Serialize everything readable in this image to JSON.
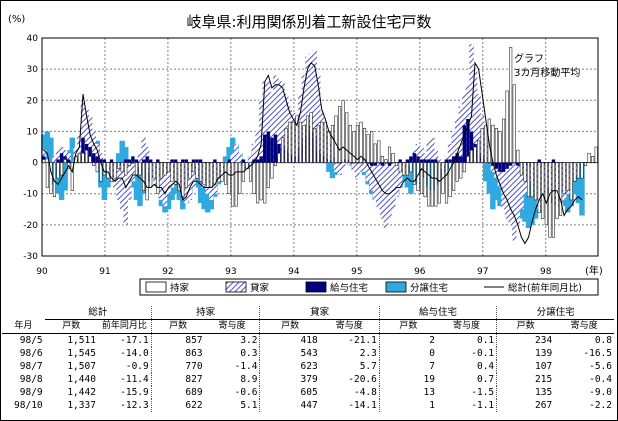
{
  "chart_data": {
    "type": "bar",
    "title": "岐阜県:利用関係別着工新設住宅戸数",
    "ylabel": "(%)",
    "xunit": "(年)",
    "ylim": [
      -30,
      40
    ],
    "yticks": [
      -30,
      -20,
      -10,
      0,
      10,
      20,
      30,
      40
    ],
    "xlim": [
      1990,
      1998.83
    ],
    "xticks": [
      "90",
      "91",
      "92",
      "93",
      "94",
      "95",
      "96",
      "97",
      "98"
    ],
    "annotation": [
      "グラフ",
      "3カ月移動平均"
    ],
    "legend_position": "bottom",
    "series": [
      {
        "name": "持家",
        "key": "mochiie",
        "pattern": "white",
        "values": [
          1,
          -8,
          -10,
          -11,
          -5,
          -4,
          1,
          -2,
          -9,
          2,
          3,
          3,
          4,
          2,
          -1,
          -3,
          -6,
          -4,
          -5,
          -6,
          -5,
          -2,
          -3,
          -4,
          -1,
          0,
          -4,
          -4,
          -9,
          -12,
          -8,
          -5,
          -10,
          -5,
          -4,
          -3,
          -6,
          -7,
          -9,
          -11,
          -8,
          -5,
          -3,
          -5,
          -6,
          -7,
          -8,
          -8,
          -7,
          -5,
          -6,
          -7,
          -10,
          -14,
          -14,
          -10,
          -6,
          -2,
          -6,
          -10,
          -13,
          -12,
          -13,
          -8,
          -5,
          -1,
          3,
          8,
          11,
          13,
          13,
          15,
          13,
          12,
          15,
          16,
          11,
          12,
          13,
          13,
          10,
          12,
          15,
          18,
          20,
          16,
          12,
          10,
          12,
          13,
          11,
          9,
          10,
          6,
          7,
          2,
          1,
          5,
          3,
          -1,
          -3,
          -4,
          -4,
          -3,
          -7,
          -9,
          -10,
          -11,
          -14,
          -14,
          -14,
          -13,
          -10,
          -13,
          -11,
          -9,
          -6,
          -5,
          -3,
          2,
          4,
          5,
          7,
          11,
          12,
          14,
          12,
          11,
          10,
          14,
          23,
          37,
          25,
          4,
          -4,
          -6,
          -11,
          -11,
          -12,
          -16,
          -18,
          -20,
          -24,
          -24,
          -18,
          -17,
          -10,
          -9,
          -12,
          -6,
          -5,
          -5,
          -1,
          3,
          2,
          5
        ]
      },
      {
        "name": "貸家",
        "key": "kashiya",
        "pattern": "hatch",
        "values": [
          4,
          1,
          0,
          2,
          4,
          5,
          4,
          3,
          0,
          5,
          9,
          20,
          17,
          15,
          10,
          6,
          3,
          0,
          -2,
          -5,
          -8,
          -12,
          -15,
          -20,
          -12,
          -6,
          -2,
          3,
          8,
          5,
          -3,
          -6,
          -8,
          -12,
          -14,
          -10,
          -8,
          -5,
          -6,
          -10,
          -13,
          -12,
          -8,
          -3,
          -5,
          -8,
          -10,
          -12,
          -10,
          -6,
          -3,
          -1,
          1,
          3,
          6,
          3,
          1,
          -1,
          2,
          6,
          10,
          20,
          26,
          26,
          22,
          28,
          27,
          26,
          22,
          18,
          16,
          14,
          22,
          28,
          34,
          35,
          36,
          28,
          16,
          12,
          6,
          2,
          -3,
          -4,
          -2,
          1,
          -1,
          -3,
          -5,
          -3,
          -3,
          -6,
          -9,
          -12,
          -15,
          -18,
          -21,
          -18,
          -15,
          -11,
          -8,
          -4,
          -1,
          1,
          4,
          6,
          5,
          3,
          7,
          8,
          4,
          1,
          -2,
          2,
          6,
          10,
          14,
          18,
          22,
          25,
          38,
          30,
          22,
          15,
          6,
          0,
          -3,
          -5,
          -8,
          -15,
          -18,
          -20,
          -25,
          -20,
          -15,
          -10,
          -5,
          -6,
          -10,
          -15,
          -12,
          -8,
          -6,
          -11,
          -14,
          -14,
          -12,
          -10,
          -6,
          -4
        ]
      },
      {
        "name": "給与住宅",
        "key": "kyuyo",
        "pattern": "navy",
        "values": [
          2,
          0,
          -1,
          0,
          1,
          3,
          2,
          1,
          0,
          1,
          2,
          8,
          6,
          5,
          3,
          2,
          1,
          1,
          0,
          1,
          0,
          -1,
          0,
          1,
          1,
          2,
          1,
          0,
          1,
          2,
          1,
          0,
          1,
          0,
          0,
          0,
          1,
          1,
          0,
          1,
          1,
          0,
          1,
          1,
          1,
          0,
          0,
          0,
          1,
          0,
          0,
          0,
          1,
          0,
          0,
          0,
          1,
          0,
          0,
          1,
          1,
          2,
          9,
          10,
          8,
          9,
          6,
          5,
          4,
          3,
          2,
          2,
          5,
          8,
          12,
          10,
          8,
          4,
          3,
          2,
          1,
          1,
          0,
          0,
          1,
          1,
          0,
          0,
          0,
          0,
          1,
          0,
          -1,
          -1,
          0,
          -1,
          0,
          -1,
          0,
          0,
          1,
          0,
          1,
          2,
          3,
          2,
          1,
          1,
          1,
          1,
          1,
          0,
          0,
          1,
          1,
          2,
          3,
          2,
          12,
          14,
          10,
          6,
          3,
          2,
          1,
          0,
          -1,
          -2,
          -3,
          -3,
          -2,
          -1,
          0,
          -1,
          0,
          0,
          -1,
          0,
          0,
          1,
          -1,
          0,
          0,
          1,
          0,
          0
        ]
      },
      {
        "name": "分譲住宅",
        "key": "bunjo",
        "pattern": "cyan",
        "values": [
          9,
          10,
          8,
          -7,
          -10,
          -12,
          -9,
          4,
          8,
          5,
          3,
          2,
          1,
          3,
          5,
          7,
          -8,
          -12,
          -8,
          -4,
          -2,
          3,
          7,
          5,
          -2,
          -8,
          -12,
          -14,
          -10,
          -6,
          -3,
          -5,
          -8,
          -14,
          -16,
          -15,
          -12,
          -10,
          -12,
          -15,
          -13,
          -10,
          -6,
          -8,
          -13,
          -15,
          -16,
          -15,
          -11,
          -7,
          -2,
          2,
          5,
          8,
          6,
          3,
          -1,
          -2,
          2,
          4,
          7,
          9,
          8,
          6,
          4,
          7,
          10,
          13,
          12,
          8,
          5,
          2,
          3,
          8,
          10,
          9,
          6,
          3,
          2,
          0,
          -3,
          -5,
          -4,
          -2,
          0,
          1,
          -1,
          -2,
          -3,
          -1,
          -4,
          -7,
          -10,
          -12,
          -13,
          -14,
          -15,
          -14,
          -12,
          -10,
          -8,
          -6,
          -8,
          -10,
          -7,
          -4,
          -2,
          -5,
          -8,
          -9,
          -7,
          -5,
          -3,
          -2,
          1,
          3,
          2,
          6,
          9,
          12,
          14,
          10,
          6,
          1,
          -6,
          -10,
          -15,
          -12,
          -14,
          -13,
          -10,
          -8,
          -14,
          -16,
          -18,
          -19,
          -21,
          -20,
          -18,
          -16,
          -10,
          -8,
          -10,
          -13,
          -12,
          -9,
          -14,
          -16,
          -14,
          -10,
          -13,
          -17
        ]
      },
      {
        "name": "総計(前年同月比)",
        "key": "total",
        "pattern": "line",
        "values": [
          4,
          3,
          -3,
          -6,
          -7,
          -5,
          -3,
          -1,
          -3,
          3,
          5,
          22,
          15,
          9,
          6,
          4,
          0,
          -3,
          -3,
          -5,
          -6,
          -5,
          -5,
          -8,
          -6,
          -4,
          -4,
          -5,
          -6,
          -8,
          -8,
          -7,
          -8,
          -8,
          -10,
          -8,
          -7,
          -6,
          -7,
          -12,
          -11,
          -8,
          -6,
          -6,
          -7,
          -8,
          -8,
          -8,
          -7,
          -5,
          -4,
          -3,
          -4,
          -4,
          -3,
          -3,
          -3,
          -2,
          -1,
          0,
          2,
          6,
          26,
          28,
          24,
          25,
          25,
          24,
          20,
          16,
          14,
          12,
          16,
          24,
          30,
          32,
          31,
          25,
          17,
          14,
          10,
          8,
          6,
          4,
          5,
          4,
          3,
          2,
          1,
          2,
          1,
          -1,
          -3,
          -5,
          -7,
          -9,
          -10,
          -10,
          -9,
          -8,
          -8,
          -6,
          -5,
          -6,
          -6,
          -4,
          -2,
          -3,
          -4,
          -5,
          -5,
          -6,
          -5,
          -4,
          -2,
          0,
          3,
          6,
          9,
          12,
          15,
          32,
          30,
          22,
          14,
          6,
          0,
          -4,
          -7,
          -10,
          -12,
          -15,
          -17,
          -20,
          -24,
          -26,
          -24,
          -19,
          -15,
          -12,
          -10,
          -13,
          -10,
          -9,
          -9,
          -12,
          -17,
          -15,
          -14,
          -12,
          -11,
          -12
        ]
      }
    ]
  },
  "table": {
    "groups": [
      "総計",
      "持家",
      "貸家",
      "給与住宅",
      "分譲住宅"
    ],
    "row_label": "年月",
    "subheaders": [
      "戸数",
      "前年同月比",
      "戸数",
      "寄与度",
      "戸数",
      "寄与度",
      "戸数",
      "寄与度",
      "戸数",
      "寄与度"
    ],
    "rows": [
      {
        "month": "98/5",
        "cells": [
          "1,511",
          "-17.1",
          "857",
          "3.2",
          "418",
          "-21.1",
          "2",
          "0.1",
          "234",
          "0.8"
        ]
      },
      {
        "month": "98/6",
        "cells": [
          "1,545",
          "-14.0",
          "863",
          "0.3",
          "543",
          "2.3",
          "0",
          "-0.1",
          "139",
          "-16.5"
        ]
      },
      {
        "month": "98/7",
        "cells": [
          "1,507",
          "-0.9",
          "770",
          "-1.4",
          "623",
          "5.7",
          "7",
          "0.4",
          "107",
          "-5.6"
        ]
      },
      {
        "month": "98/8",
        "cells": [
          "1,440",
          "-11.4",
          "827",
          "8.9",
          "379",
          "-20.6",
          "19",
          "0.7",
          "215",
          "-0.4"
        ]
      },
      {
        "month": "98/9",
        "cells": [
          "1,442",
          "-15.9",
          "689",
          "-0.6",
          "605",
          "-4.8",
          "13",
          "-1.5",
          "135",
          "-9.0"
        ]
      },
      {
        "month": "98/10",
        "cells": [
          "1,337",
          "-12.3",
          "622",
          "5.1",
          "447",
          "-14.1",
          "1",
          "-1.1",
          "267",
          "-2.2"
        ]
      }
    ]
  },
  "colors": {
    "hatch": "#5050c8",
    "navy": "#000080",
    "cyan": "#30a8e0",
    "frame": "#000000",
    "grid": "#808080"
  }
}
